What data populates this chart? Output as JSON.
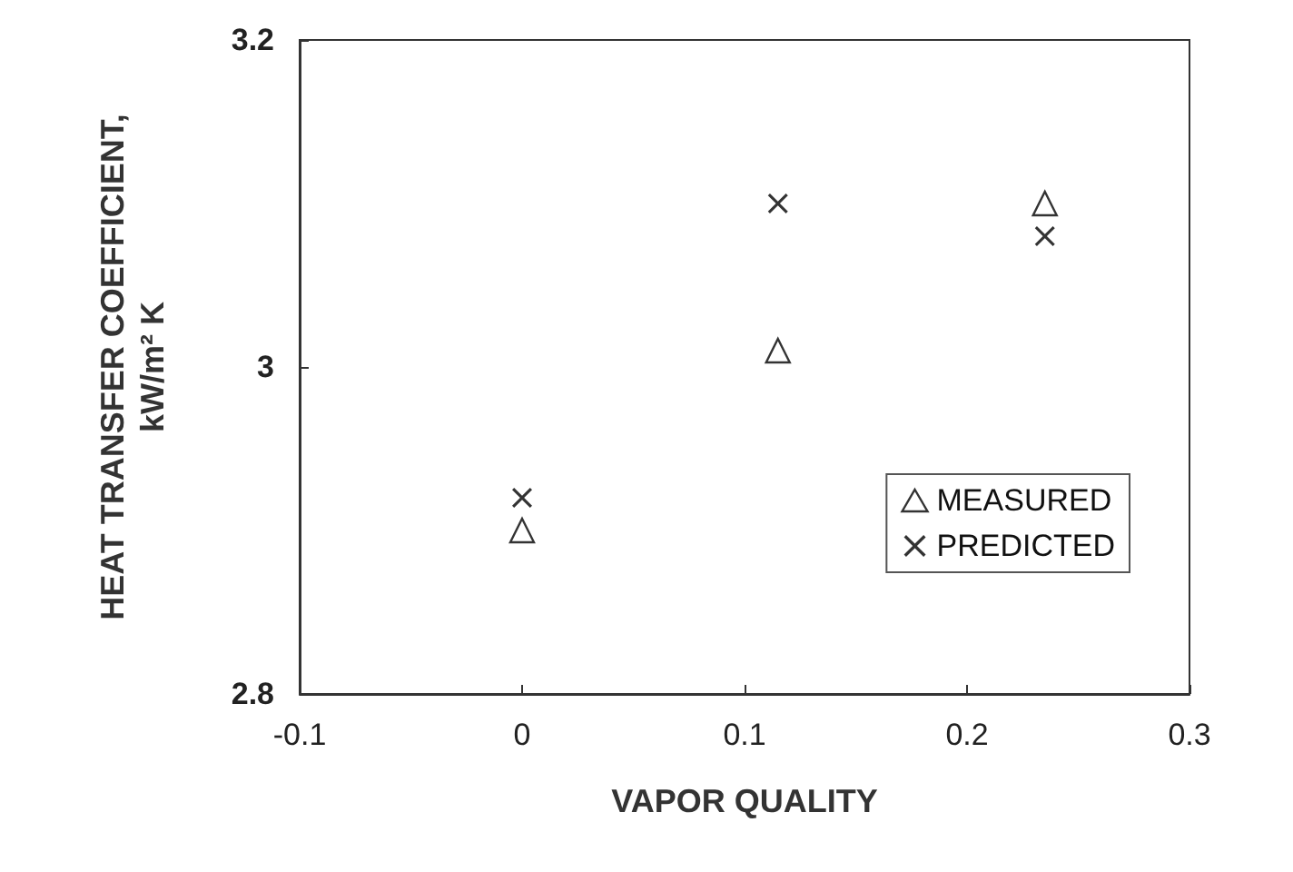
{
  "chart_data": {
    "type": "scatter",
    "xlabel": "VAPOR QUALITY",
    "ylabel": "HEAT TRANSFER COEFFICIENT,\nkW/m² K",
    "x": [
      0,
      0.115,
      0.235
    ],
    "series": [
      {
        "name": "MEASURED",
        "color": "#000000",
        "marker": "triangle",
        "values": [
          2.9,
          3.01,
          3.1
        ]
      },
      {
        "name": "PREDICTED",
        "color": "#000000",
        "marker": "cross",
        "values": [
          2.92,
          3.1,
          3.08
        ]
      }
    ],
    "xlim": [
      -0.1,
      0.3
    ],
    "xticks": [
      -0.1,
      0,
      0.1,
      0.2,
      0.3
    ],
    "ylim": [
      2.8,
      3.2
    ],
    "yticks": [
      2.8,
      3,
      3.2
    ],
    "grid": false,
    "legend": "bottom right"
  }
}
